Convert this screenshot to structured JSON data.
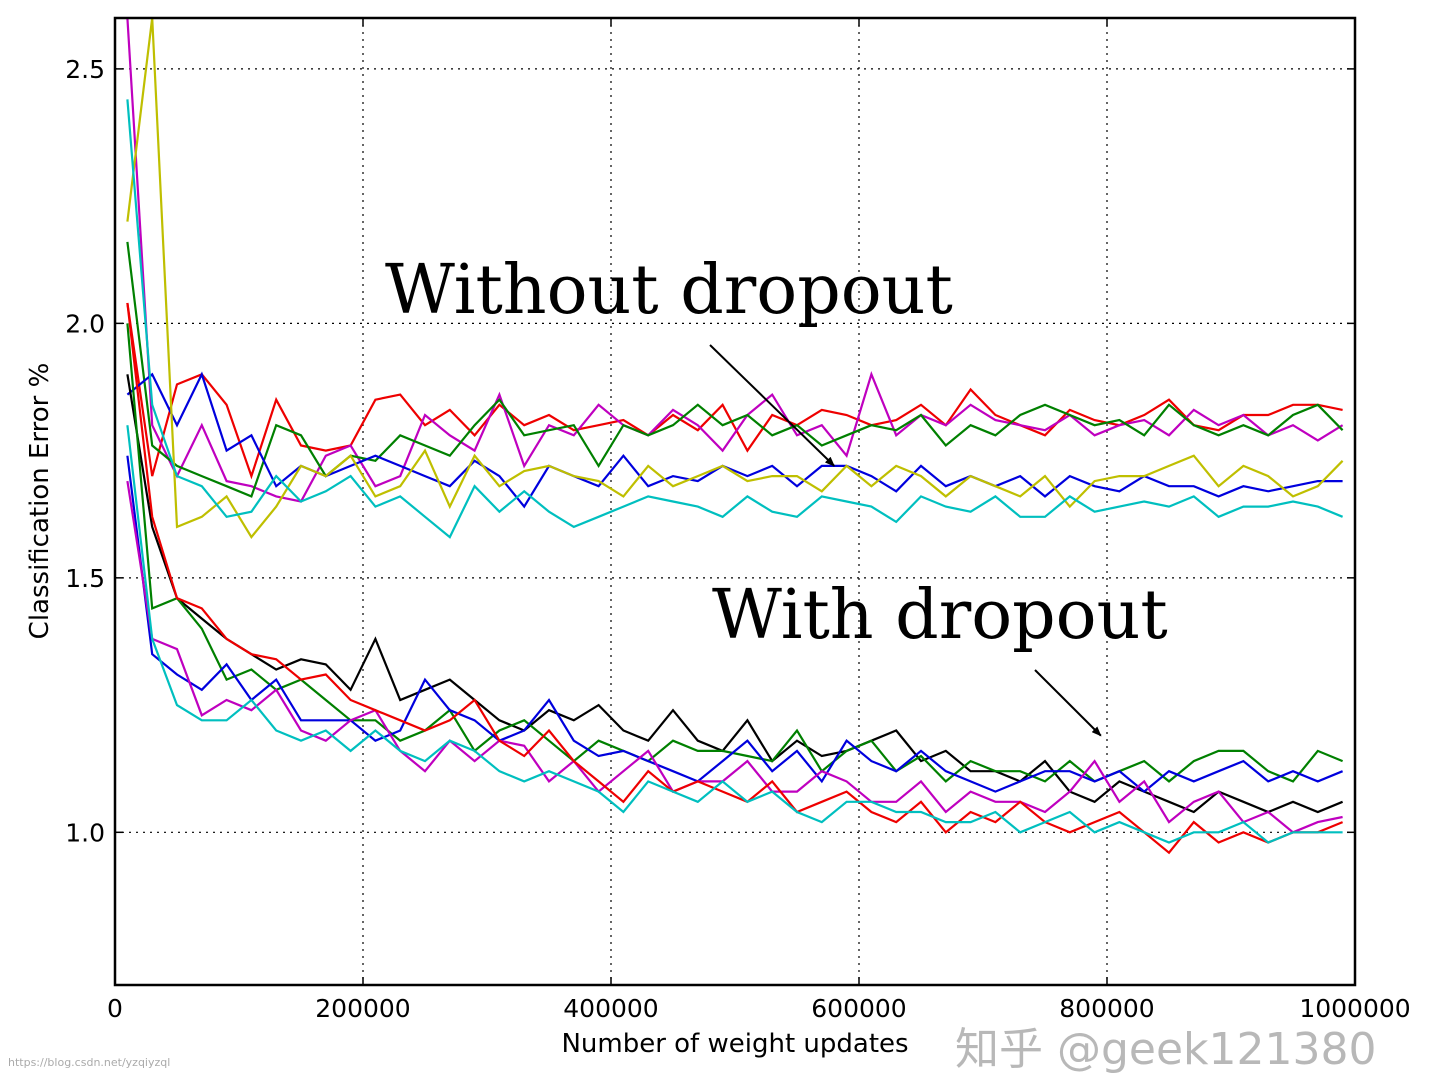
{
  "chart_data": {
    "type": "line",
    "title": "",
    "xlabel": "Number of weight updates",
    "ylabel": "Classification Error %",
    "xlim": [
      0,
      1000000
    ],
    "ylim": [
      0.7,
      2.6
    ],
    "grid": true,
    "x_ticks": [
      "0",
      "200000",
      "400000",
      "600000",
      "800000",
      "1000000"
    ],
    "y_ticks": [
      "1.0",
      "1.5",
      "2.0",
      "2.5"
    ],
    "x": [
      10000,
      30000,
      50000,
      70000,
      90000,
      110000,
      130000,
      150000,
      170000,
      190000,
      210000,
      230000,
      250000,
      270000,
      290000,
      310000,
      330000,
      350000,
      370000,
      390000,
      410000,
      430000,
      450000,
      470000,
      490000,
      510000,
      530000,
      550000,
      570000,
      590000,
      610000,
      630000,
      650000,
      670000,
      690000,
      710000,
      730000,
      750000,
      770000,
      790000,
      810000,
      830000,
      850000,
      870000,
      890000,
      910000,
      930000,
      950000,
      970000,
      990000
    ],
    "annotations": [
      {
        "text": "Without dropout",
        "arrow_to": [
          580000,
          1.72
        ]
      },
      {
        "text": "With dropout",
        "arrow_to": [
          795000,
          1.19
        ]
      }
    ],
    "series": [
      {
        "group": "without-dropout",
        "color": "#ee0000",
        "values": [
          2.04,
          1.7,
          1.88,
          1.9,
          1.84,
          1.7,
          1.85,
          1.76,
          1.75,
          1.76,
          1.85,
          1.86,
          1.8,
          1.83,
          1.78,
          1.84,
          1.8,
          1.82,
          1.79,
          1.8,
          1.81,
          1.78,
          1.82,
          1.79,
          1.84,
          1.75,
          1.82,
          1.8,
          1.83,
          1.82,
          1.8,
          1.81,
          1.84,
          1.8,
          1.87,
          1.82,
          1.8,
          1.78,
          1.83,
          1.81,
          1.8,
          1.82,
          1.85,
          1.8,
          1.79,
          1.82,
          1.82,
          1.84,
          1.84,
          1.83
        ]
      },
      {
        "group": "without-dropout",
        "color": "#bf00bf",
        "values": [
          2.6,
          1.8,
          1.7,
          1.8,
          1.69,
          1.68,
          1.66,
          1.65,
          1.74,
          1.76,
          1.68,
          1.7,
          1.82,
          1.78,
          1.75,
          1.86,
          1.72,
          1.8,
          1.78,
          1.84,
          1.8,
          1.78,
          1.83,
          1.8,
          1.75,
          1.82,
          1.86,
          1.78,
          1.8,
          1.74,
          1.9,
          1.78,
          1.82,
          1.8,
          1.84,
          1.81,
          1.8,
          1.79,
          1.82,
          1.78,
          1.8,
          1.81,
          1.78,
          1.83,
          1.8,
          1.82,
          1.78,
          1.8,
          1.77,
          1.8
        ]
      },
      {
        "group": "without-dropout",
        "color": "#008000",
        "values": [
          2.16,
          1.76,
          1.72,
          1.7,
          1.68,
          1.66,
          1.8,
          1.78,
          1.7,
          1.74,
          1.73,
          1.78,
          1.76,
          1.74,
          1.8,
          1.85,
          1.78,
          1.79,
          1.8,
          1.72,
          1.8,
          1.78,
          1.8,
          1.84,
          1.8,
          1.82,
          1.78,
          1.8,
          1.76,
          1.78,
          1.8,
          1.79,
          1.82,
          1.76,
          1.8,
          1.78,
          1.82,
          1.84,
          1.82,
          1.8,
          1.81,
          1.78,
          1.84,
          1.8,
          1.78,
          1.8,
          1.78,
          1.82,
          1.84,
          1.79
        ]
      },
      {
        "group": "without-dropout",
        "color": "#0000dd",
        "values": [
          1.86,
          1.9,
          1.8,
          1.9,
          1.75,
          1.78,
          1.68,
          1.72,
          1.7,
          1.72,
          1.74,
          1.72,
          1.7,
          1.68,
          1.73,
          1.7,
          1.64,
          1.72,
          1.7,
          1.68,
          1.74,
          1.68,
          1.7,
          1.69,
          1.72,
          1.7,
          1.72,
          1.68,
          1.72,
          1.72,
          1.7,
          1.67,
          1.72,
          1.68,
          1.7,
          1.68,
          1.7,
          1.66,
          1.7,
          1.68,
          1.67,
          1.7,
          1.68,
          1.68,
          1.66,
          1.68,
          1.67,
          1.68,
          1.69,
          1.69
        ]
      },
      {
        "group": "without-dropout",
        "color": "#bfbf00",
        "values": [
          2.2,
          2.6,
          1.6,
          1.62,
          1.66,
          1.58,
          1.64,
          1.72,
          1.7,
          1.74,
          1.66,
          1.68,
          1.75,
          1.64,
          1.74,
          1.68,
          1.71,
          1.72,
          1.7,
          1.69,
          1.66,
          1.72,
          1.68,
          1.7,
          1.72,
          1.69,
          1.7,
          1.7,
          1.67,
          1.72,
          1.68,
          1.72,
          1.7,
          1.66,
          1.7,
          1.68,
          1.66,
          1.7,
          1.64,
          1.69,
          1.7,
          1.7,
          1.72,
          1.74,
          1.68,
          1.72,
          1.7,
          1.66,
          1.68,
          1.73
        ]
      },
      {
        "group": "without-dropout",
        "color": "#00bfbf",
        "values": [
          2.44,
          1.84,
          1.7,
          1.68,
          1.62,
          1.63,
          1.7,
          1.65,
          1.67,
          1.7,
          1.64,
          1.66,
          1.62,
          1.58,
          1.68,
          1.63,
          1.67,
          1.63,
          1.6,
          1.62,
          1.64,
          1.66,
          1.65,
          1.64,
          1.62,
          1.66,
          1.63,
          1.62,
          1.66,
          1.65,
          1.64,
          1.61,
          1.66,
          1.64,
          1.63,
          1.66,
          1.62,
          1.62,
          1.66,
          1.63,
          1.64,
          1.65,
          1.64,
          1.66,
          1.62,
          1.64,
          1.64,
          1.65,
          1.64,
          1.62
        ]
      },
      {
        "group": "with-dropout",
        "color": "#000000",
        "values": [
          1.9,
          1.6,
          1.46,
          1.42,
          1.38,
          1.35,
          1.32,
          1.34,
          1.33,
          1.28,
          1.38,
          1.26,
          1.28,
          1.3,
          1.26,
          1.22,
          1.2,
          1.24,
          1.22,
          1.25,
          1.2,
          1.18,
          1.24,
          1.18,
          1.16,
          1.22,
          1.14,
          1.18,
          1.15,
          1.16,
          1.18,
          1.2,
          1.14,
          1.16,
          1.12,
          1.12,
          1.1,
          1.14,
          1.08,
          1.06,
          1.1,
          1.08,
          1.06,
          1.04,
          1.08,
          1.06,
          1.04,
          1.06,
          1.04,
          1.06
        ]
      },
      {
        "group": "with-dropout",
        "color": "#008000",
        "values": [
          2.0,
          1.44,
          1.46,
          1.4,
          1.3,
          1.32,
          1.28,
          1.3,
          1.26,
          1.22,
          1.22,
          1.18,
          1.2,
          1.24,
          1.16,
          1.2,
          1.22,
          1.18,
          1.14,
          1.18,
          1.16,
          1.14,
          1.18,
          1.16,
          1.16,
          1.15,
          1.14,
          1.2,
          1.12,
          1.16,
          1.18,
          1.12,
          1.15,
          1.1,
          1.14,
          1.12,
          1.12,
          1.1,
          1.14,
          1.1,
          1.12,
          1.14,
          1.1,
          1.14,
          1.16,
          1.16,
          1.12,
          1.1,
          1.16,
          1.14
        ]
      },
      {
        "group": "with-dropout",
        "color": "#0000dd",
        "values": [
          1.74,
          1.35,
          1.31,
          1.28,
          1.33,
          1.26,
          1.3,
          1.22,
          1.22,
          1.22,
          1.18,
          1.2,
          1.3,
          1.24,
          1.22,
          1.18,
          1.2,
          1.26,
          1.18,
          1.15,
          1.16,
          1.14,
          1.12,
          1.1,
          1.14,
          1.18,
          1.12,
          1.16,
          1.1,
          1.18,
          1.14,
          1.12,
          1.16,
          1.12,
          1.1,
          1.08,
          1.1,
          1.12,
          1.12,
          1.1,
          1.12,
          1.08,
          1.12,
          1.1,
          1.12,
          1.14,
          1.1,
          1.12,
          1.1,
          1.12
        ]
      },
      {
        "group": "with-dropout",
        "color": "#bf00bf",
        "values": [
          1.69,
          1.38,
          1.36,
          1.23,
          1.26,
          1.24,
          1.28,
          1.2,
          1.18,
          1.22,
          1.24,
          1.16,
          1.12,
          1.18,
          1.14,
          1.18,
          1.17,
          1.1,
          1.14,
          1.08,
          1.12,
          1.16,
          1.08,
          1.1,
          1.1,
          1.14,
          1.08,
          1.08,
          1.12,
          1.1,
          1.06,
          1.06,
          1.1,
          1.04,
          1.08,
          1.06,
          1.06,
          1.04,
          1.08,
          1.14,
          1.06,
          1.1,
          1.02,
          1.06,
          1.08,
          1.02,
          1.04,
          1.0,
          1.02,
          1.03
        ]
      },
      {
        "group": "with-dropout",
        "color": "#ee0000",
        "values": [
          2.04,
          1.62,
          1.46,
          1.44,
          1.38,
          1.35,
          1.34,
          1.3,
          1.31,
          1.26,
          1.24,
          1.22,
          1.2,
          1.22,
          1.26,
          1.18,
          1.15,
          1.2,
          1.14,
          1.1,
          1.06,
          1.12,
          1.08,
          1.1,
          1.08,
          1.06,
          1.1,
          1.04,
          1.06,
          1.08,
          1.04,
          1.02,
          1.06,
          1.0,
          1.04,
          1.02,
          1.06,
          1.02,
          1.0,
          1.02,
          1.04,
          1.0,
          0.96,
          1.02,
          0.98,
          1.0,
          0.98,
          1.0,
          1.0,
          1.02
        ]
      },
      {
        "group": "with-dropout",
        "color": "#00bfbf",
        "values": [
          1.8,
          1.38,
          1.25,
          1.22,
          1.22,
          1.26,
          1.2,
          1.18,
          1.2,
          1.16,
          1.2,
          1.16,
          1.14,
          1.18,
          1.16,
          1.12,
          1.1,
          1.12,
          1.1,
          1.08,
          1.04,
          1.1,
          1.08,
          1.06,
          1.1,
          1.06,
          1.08,
          1.04,
          1.02,
          1.06,
          1.06,
          1.04,
          1.04,
          1.02,
          1.02,
          1.04,
          1.0,
          1.02,
          1.04,
          1.0,
          1.02,
          1.0,
          0.98,
          1.0,
          1.0,
          1.02,
          0.98,
          1.0,
          1.0,
          1.0
        ]
      }
    ]
  },
  "watermark": {
    "text": "知乎 @geek121380",
    "url": "https://blog.csdn.net/yzqiyzql"
  }
}
